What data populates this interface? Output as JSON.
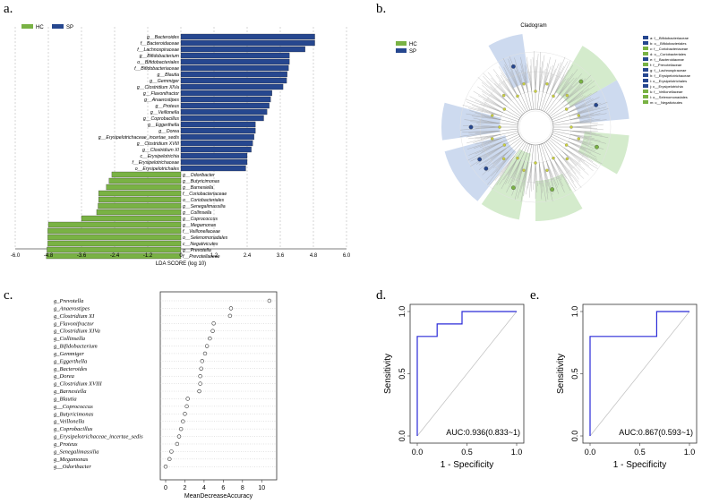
{
  "colors": {
    "hc": "#79b244",
    "sp": "#26478f",
    "roc": "#2b2bd8",
    "diag": "#bfbfbf",
    "ring_hc": "#cde8c3",
    "ring_sp": "#c4d3ec",
    "node": "#c9cf3d"
  },
  "panel_labels": {
    "a": "a.",
    "b": "b.",
    "c": "c.",
    "d": "d.",
    "e": "e."
  },
  "chart_data": [
    {
      "type": "bar",
      "panel": "a",
      "orientation": "horizontal",
      "title": "",
      "xlabel": "LDA SCORE (log 10)",
      "xlim": [
        -6,
        6
      ],
      "xticks": [
        "-6.0",
        "-4.8",
        "-3.6",
        "-2.4",
        "-1.2",
        "0",
        "1.2",
        "2.4",
        "3.6",
        "4.8",
        "6.0"
      ],
      "legend": [
        "HC",
        "SP"
      ],
      "series": [
        {
          "name": "SP",
          "categories": [
            "g__Bacteroides",
            "f__Bacteroidaceae",
            "f__Lachnospiraceae",
            "g__Bifidobacterium",
            "o__Bifidobacteriales",
            "f__Bifidobacteriaceae",
            "g__Blautia",
            "g__Gemmiger",
            "g__Clostridium XIVa",
            "g__Flavonifractor",
            "g__Anaerostipes",
            "g__Proteus",
            "g__Veillonella",
            "g__Coprobacillus",
            "g__Eggerthella",
            "g__Dorea",
            "g__Erysipelotrichaceae_incertae_sedis",
            "g__Clostridium XVIII",
            "g__Clostridium XI",
            "c__Erysipelotrichia",
            "f__Erysipelotrichaceae",
            "o__Erysipelotrichales"
          ],
          "values": [
            4.85,
            4.85,
            4.5,
            3.93,
            3.93,
            3.9,
            3.85,
            3.83,
            3.7,
            3.3,
            3.25,
            3.2,
            3.12,
            3.0,
            2.7,
            2.7,
            2.65,
            2.6,
            2.55,
            2.4,
            2.4,
            2.35
          ]
        },
        {
          "name": "HC",
          "categories": [
            "g__Odoribacter",
            "g__Butyricimonas",
            "g__Barnesiella",
            "f__Coriobacteriaceae",
            "o__Coriobacteriales",
            "g__Senegalimassilia",
            "g__Collinsella",
            "g__Coprococcus",
            "g__Megamonas",
            "f__Veillonellaceae",
            "o__Selenomonadales",
            "c__Negativicutes",
            "g__Prevotella",
            "f__Prevotellaceae"
          ],
          "values": [
            -2.5,
            -2.6,
            -2.7,
            -2.98,
            -2.98,
            -3.0,
            -3.05,
            -3.6,
            -4.8,
            -4.82,
            -4.82,
            -4.82,
            -4.85,
            -4.87
          ]
        }
      ]
    },
    {
      "type": "scatter",
      "panel": "c",
      "xlabel": "MeanDecreaseAccuracy",
      "xlim": [
        0,
        11
      ],
      "xticks": [
        "0",
        "2",
        "4",
        "6",
        "8",
        "10"
      ],
      "categories": [
        "g_Prevotella",
        "g_Anaerostipes",
        "g_Clostridium XI",
        "g_Flavonifractor",
        "g_Clostridium XIVa",
        "g_Collinsella",
        "g_Bifidobacterium",
        "g_Gemmiger",
        "g_Eggerthella",
        "g_Bacteroides",
        "g_Dorea",
        "g_Clostridium XVIII",
        "g_Barnesiella",
        "g_Blautia",
        "g__Coprococcus",
        "g_Butyricimonas",
        "g_Veillonella",
        "g_Coprobacillus",
        "g_Erysipelotrichaceae_incertae_sedis",
        "g_Proteus",
        "g_Senegalimassilia",
        "g_Megamonas",
        "g__Odoribacter"
      ],
      "values": [
        10.8,
        6.8,
        6.7,
        5.0,
        4.9,
        4.6,
        4.3,
        4.1,
        3.8,
        3.7,
        3.6,
        3.6,
        3.5,
        2.3,
        2.2,
        2.0,
        1.8,
        1.6,
        1.4,
        1.2,
        0.6,
        0.4,
        0.0
      ]
    },
    {
      "type": "line",
      "panel": "d",
      "xlabel": "1 - Specificity",
      "ylabel": "Sensitivity",
      "xlim": [
        0,
        1
      ],
      "ylim": [
        0,
        1
      ],
      "xticks": [
        "0.0",
        "0.5",
        "1.0"
      ],
      "yticks": [
        "0.0",
        "0.5",
        "1.0"
      ],
      "annotation": "AUC:0.936(0.833~1)",
      "x": [
        0,
        0,
        0.2,
        0.2,
        0.45,
        0.45,
        1
      ],
      "y": [
        0,
        0.8,
        0.8,
        0.9,
        0.9,
        1,
        1
      ]
    },
    {
      "type": "line",
      "panel": "e",
      "xlabel": "1 - Specificity",
      "ylabel": "Sensitivity",
      "xlim": [
        0,
        1
      ],
      "ylim": [
        0,
        1
      ],
      "xticks": [
        "0.0",
        "0.5",
        "1.0"
      ],
      "yticks": [
        "0.0",
        "0.5",
        "1.0"
      ],
      "annotation": "AUC:0.867(0.593~1)",
      "x": [
        0,
        0,
        0.67,
        0.67,
        1
      ],
      "y": [
        0,
        0.8,
        0.8,
        1,
        1
      ]
    }
  ],
  "cladogram": {
    "title": "Cladogram",
    "legend": [
      "HC",
      "SP"
    ],
    "legend_keys": [
      {
        "label": "a: f__Bifidobacteriaceae",
        "group": "SP"
      },
      {
        "label": "b: o__Bifidobacteriales",
        "group": "SP"
      },
      {
        "label": "c: f__Coriobacteriaceae",
        "group": "HC"
      },
      {
        "label": "d: o__Coriobacteriales",
        "group": "HC"
      },
      {
        "label": "e: f__Bacteroidaceae",
        "group": "SP"
      },
      {
        "label": "f: f__Prevotellaceae",
        "group": "HC"
      },
      {
        "label": "g: f__Lachnospiraceae",
        "group": "SP"
      },
      {
        "label": "h: f__Erysipelotrichaceae",
        "group": "SP"
      },
      {
        "label": "i: o__Erysipelotrichales",
        "group": "SP"
      },
      {
        "label": "j: c__Erysipelotrichia",
        "group": "SP"
      },
      {
        "label": "k: f__Veillonellaceae",
        "group": "HC"
      },
      {
        "label": "l: o__Selenomonadales",
        "group": "HC"
      },
      {
        "label": "m: c__Negativicutes",
        "group": "HC"
      }
    ]
  }
}
